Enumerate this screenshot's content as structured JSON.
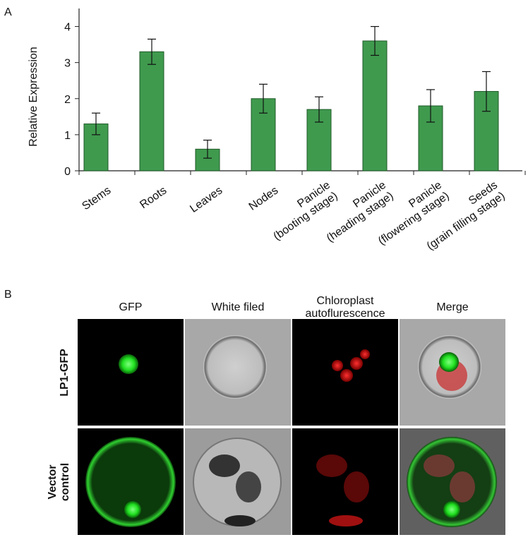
{
  "panel_labels": [
    "A",
    "B"
  ],
  "chart_data": {
    "type": "bar",
    "y_label": "Relative Expression",
    "categories": [
      "Stems",
      "Roots",
      "Leaves",
      "Nodes",
      "Panicle\n(booting stage)",
      "Panicle\n(heading stage)",
      "Panicle\n(flowering stage)",
      "Seeds\n(grain filling stage)"
    ],
    "values": [
      1.3,
      3.3,
      0.6,
      2.0,
      1.7,
      3.6,
      1.8,
      2.2
    ],
    "errors": [
      0.3,
      0.35,
      0.25,
      0.4,
      0.35,
      0.4,
      0.45,
      0.55
    ],
    "color": "#3f9a4e",
    "ylim": [
      0,
      4.5
    ],
    "yticks": [
      0,
      1,
      2,
      3,
      4
    ],
    "grid": false
  },
  "panel_b": {
    "columns": [
      "GFP",
      "White filed",
      "Chloroplast\nautoflurescence",
      "Merge"
    ],
    "rows": [
      "LP1-GFP",
      "Vector\ncontrol"
    ]
  }
}
